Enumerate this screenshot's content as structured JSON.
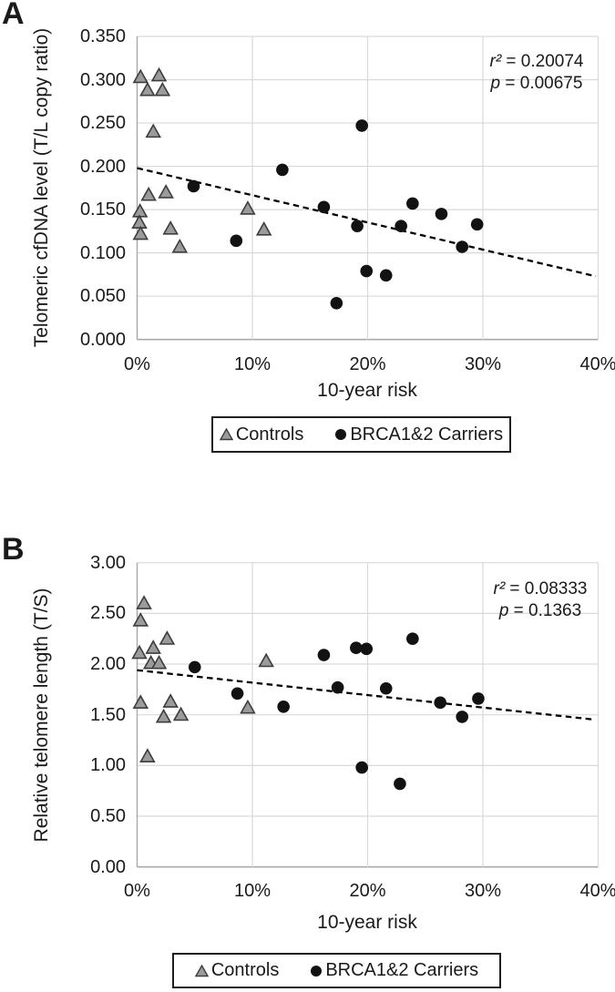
{
  "panels": [
    {
      "label": "A"
    },
    {
      "label": "B"
    }
  ],
  "colors": {
    "triangle_fill": "#9b9b9b",
    "triangle_stroke": "#3d3d3d",
    "circle_fill": "#121212",
    "gridline": "#d9d9d9",
    "axis_line": "#a9a9a9",
    "trend_line": "#000000",
    "legend_border": "#1f1f1f"
  },
  "chart_data": [
    {
      "type": "scatter",
      "panel": "A",
      "xlabel": "10-year risk",
      "ylabel": "Telomeric cfDNA level (T/L copy ratio)",
      "xlim": [
        0,
        40
      ],
      "ylim": [
        0,
        0.35
      ],
      "grid": true,
      "legend_position": "bottom",
      "x_ticks": [
        {
          "v": 0,
          "label": "0%"
        },
        {
          "v": 10,
          "label": "10%"
        },
        {
          "v": 20,
          "label": "20%"
        },
        {
          "v": 30,
          "label": "30%"
        },
        {
          "v": 40,
          "label": "40%"
        }
      ],
      "y_ticks": [
        {
          "v": 0,
          "label": "0.000"
        },
        {
          "v": 0.05,
          "label": "0.050"
        },
        {
          "v": 0.1,
          "label": "0.100"
        },
        {
          "v": 0.15,
          "label": "0.150"
        },
        {
          "v": 0.2,
          "label": "0.200"
        },
        {
          "v": 0.25,
          "label": "0.250"
        },
        {
          "v": 0.3,
          "label": "0.300"
        },
        {
          "v": 0.35,
          "label": "0.350"
        }
      ],
      "annotation": [
        {
          "sym": "r²",
          "rest": " = 0.20074"
        },
        {
          "sym": "p",
          "rest": " = 0.00675"
        }
      ],
      "series": [
        {
          "name": "Controls",
          "marker": "triangle",
          "points": [
            [
              0.3,
              0.303
            ],
            [
              1.9,
              0.305
            ],
            [
              0.9,
              0.288
            ],
            [
              2.2,
              0.288
            ],
            [
              1.4,
              0.24
            ],
            [
              1.0,
              0.167
            ],
            [
              2.5,
              0.17
            ],
            [
              0.25,
              0.148
            ],
            [
              0.2,
              0.135
            ],
            [
              0.3,
              0.122
            ],
            [
              2.9,
              0.128
            ],
            [
              3.7,
              0.107
            ],
            [
              9.6,
              0.151
            ],
            [
              11.0,
              0.127
            ]
          ]
        },
        {
          "name": "BRCA1&2 Carriers",
          "marker": "circle",
          "points": [
            [
              4.9,
              0.177
            ],
            [
              8.6,
              0.114
            ],
            [
              12.6,
              0.196
            ],
            [
              16.2,
              0.153
            ],
            [
              19.5,
              0.247
            ],
            [
              19.1,
              0.131
            ],
            [
              22.9,
              0.131
            ],
            [
              23.9,
              0.157
            ],
            [
              26.4,
              0.145
            ],
            [
              29.5,
              0.133
            ],
            [
              28.2,
              0.107
            ],
            [
              19.9,
              0.079
            ],
            [
              21.6,
              0.074
            ],
            [
              17.3,
              0.042
            ]
          ]
        }
      ],
      "trendline": {
        "style": "dashed",
        "x1": 0,
        "y1": 0.198,
        "x2": 39.8,
        "y2": 0.073
      }
    },
    {
      "type": "scatter",
      "panel": "B",
      "xlabel": "10-year risk",
      "ylabel": "Relative telomere length (T/S)",
      "xlim": [
        0,
        40
      ],
      "ylim": [
        0,
        3
      ],
      "grid": true,
      "legend_position": "bottom",
      "x_ticks": [
        {
          "v": 0,
          "label": "0%"
        },
        {
          "v": 10,
          "label": "10%"
        },
        {
          "v": 20,
          "label": "20%"
        },
        {
          "v": 30,
          "label": "30%"
        },
        {
          "v": 40,
          "label": "40%"
        }
      ],
      "y_ticks": [
        {
          "v": 0,
          "label": "0.00"
        },
        {
          "v": 0.5,
          "label": "0.50"
        },
        {
          "v": 1,
          "label": "1.00"
        },
        {
          "v": 1.5,
          "label": "1.50"
        },
        {
          "v": 2,
          "label": "2.00"
        },
        {
          "v": 2.5,
          "label": "2.50"
        },
        {
          "v": 3,
          "label": "3.00"
        }
      ],
      "annotation": [
        {
          "sym": "r²",
          "rest": " = 0.08333"
        },
        {
          "sym": "p",
          "rest": " = 0.1363"
        }
      ],
      "series": [
        {
          "name": "Controls",
          "marker": "triangle",
          "points": [
            [
              0.6,
              2.6
            ],
            [
              0.3,
              2.43
            ],
            [
              0.2,
              2.11
            ],
            [
              1.4,
              2.16
            ],
            [
              2.6,
              2.25
            ],
            [
              1.2,
              2.01
            ],
            [
              1.9,
              2.01
            ],
            [
              0.3,
              1.62
            ],
            [
              2.9,
              1.63
            ],
            [
              2.3,
              1.48
            ],
            [
              3.8,
              1.5
            ],
            [
              0.9,
              1.09
            ],
            [
              9.6,
              1.57
            ],
            [
              11.2,
              2.03
            ]
          ]
        },
        {
          "name": "BRCA1&2 Carriers",
          "marker": "circle",
          "points": [
            [
              5.0,
              1.97
            ],
            [
              8.7,
              1.71
            ],
            [
              12.7,
              1.58
            ],
            [
              16.2,
              2.09
            ],
            [
              17.4,
              1.77
            ],
            [
              19.0,
              2.16
            ],
            [
              19.9,
              2.15
            ],
            [
              21.6,
              1.76
            ],
            [
              23.9,
              2.25
            ],
            [
              26.3,
              1.62
            ],
            [
              28.2,
              1.48
            ],
            [
              29.6,
              1.66
            ],
            [
              19.5,
              0.98
            ],
            [
              22.8,
              0.82
            ]
          ]
        }
      ],
      "trendline": {
        "style": "dashed",
        "x1": 0,
        "y1": 1.94,
        "x2": 39.5,
        "y2": 1.455
      }
    }
  ]
}
